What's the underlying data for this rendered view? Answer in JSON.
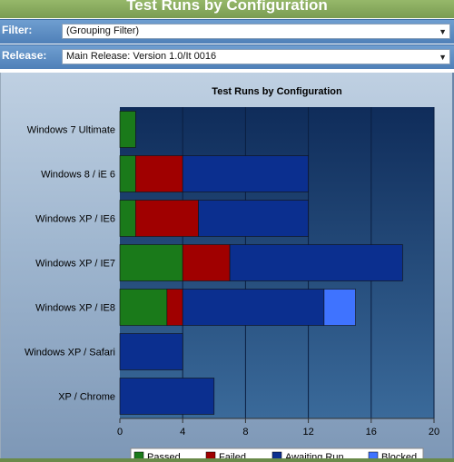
{
  "header": {
    "title": "Test Runs by Configuration"
  },
  "filters": [
    {
      "label": "Filter:",
      "value": "(Grouping Filter)"
    },
    {
      "label": "Release:",
      "value": "Main Release: Version 1.0/It 0016"
    }
  ],
  "colors": {
    "passed": "#1a7a1a",
    "failed": "#a00000",
    "awaiting": "#0b2f8f",
    "blocked": "#3f73ff",
    "plot_bg": "#1b3f6a"
  },
  "chart_data": {
    "type": "bar",
    "orientation": "horizontal",
    "stacked": true,
    "title": "Test Runs by Configuration",
    "categories": [
      "Windows 7 Ultimate",
      "Windows 8 / iE 6",
      "Windows XP / IE6",
      "Windows XP / IE7",
      "Windows XP / IE8",
      "Windows XP / Safari",
      "XP / Chrome"
    ],
    "series": [
      {
        "name": "Passed",
        "values": [
          1,
          1,
          1,
          4,
          3,
          0,
          0
        ]
      },
      {
        "name": "Failed",
        "values": [
          0,
          3,
          4,
          3,
          1,
          0,
          0
        ]
      },
      {
        "name": "Awaiting Run",
        "values": [
          0,
          8,
          7,
          11,
          9,
          4,
          6
        ]
      },
      {
        "name": "Blocked",
        "values": [
          0,
          0,
          0,
          0,
          2,
          0,
          0
        ]
      }
    ],
    "xlim": [
      0,
      20
    ],
    "xticks": [
      0,
      4,
      8,
      12,
      16,
      20
    ],
    "grid": true,
    "legend": "bottom"
  }
}
